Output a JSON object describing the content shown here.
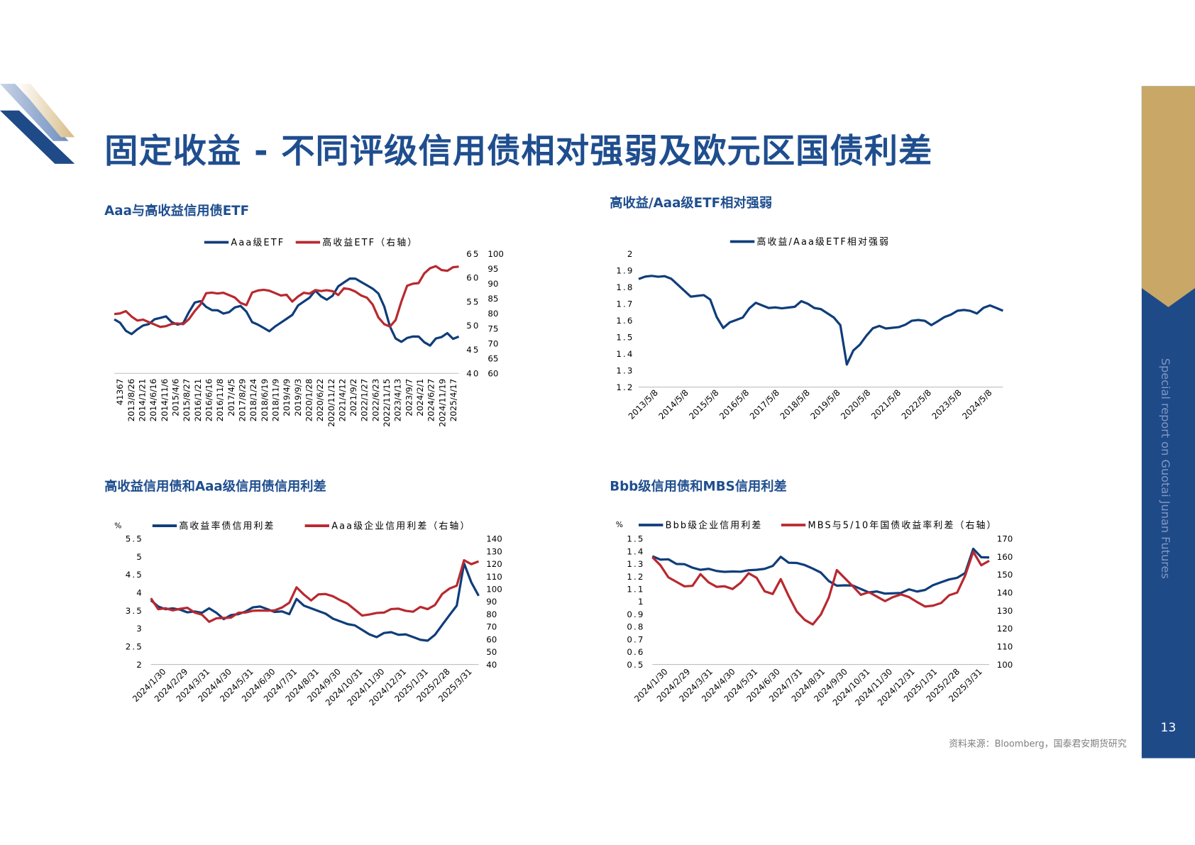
{
  "page": {
    "title": "固定收益 - 不同评级信用债相对强弱及欧元区国债利差",
    "side_text": "Special report on Guotai Junan Futures",
    "page_number": "13",
    "source": "资料来源：Bloomberg，国泰君安期货研究",
    "colors": {
      "navy": "#0f3d7a",
      "red": "#b8292f",
      "title": "#1f4e8f",
      "gold": "#c8a767"
    }
  },
  "chart_data": [
    {
      "id": "c1",
      "type": "line",
      "title": "Aaa与高收益信用债ETF",
      "x_ticks": [
        "41367",
        "2013/8/26",
        "2014/1/21",
        "2014/6/16",
        "2014/11/6",
        "2015/4/6",
        "2015/8/27",
        "2016/1/21",
        "2016/6/16",
        "2016/11/8",
        "2017/4/5",
        "2017/8/29",
        "2018/1/24",
        "2018/6/19",
        "2018/11/9",
        "2019/4/9",
        "2019/9/3",
        "2020/1/28",
        "2020/6/22",
        "2020/11/12",
        "2021/4/12",
        "2021/9/2",
        "2022/1/27",
        "2022/6/23",
        "2022/11/15",
        "2023/4/13",
        "2023/9/7",
        "2024/2/1",
        "2024/6/27",
        "2024/11/19",
        "2025/4/17"
      ],
      "y_left": {
        "ticks": [
          "65",
          "60",
          "55",
          "50",
          "45",
          "40"
        ],
        "range": [
          40,
          65
        ]
      },
      "y_right": {
        "ticks": [
          "100",
          "95",
          "90",
          "85",
          "80",
          "75",
          "70",
          "65",
          "60"
        ],
        "range": [
          60,
          100
        ]
      },
      "series": [
        {
          "name": "Aaa级ETF",
          "color": "#0f3d7a",
          "axis": "left",
          "values": [
            51,
            50.5,
            49,
            48.5,
            49,
            50,
            50.5,
            51,
            51.5,
            52,
            51,
            50,
            50.5,
            53,
            54.5,
            55,
            54,
            53.5,
            53,
            52.5,
            53,
            53.5,
            54,
            53,
            51,
            50,
            49.5,
            49,
            49.5,
            50.5,
            51.5,
            52.5,
            54,
            55,
            56,
            57,
            56,
            55.5,
            56.5,
            58,
            59,
            60,
            59.5,
            59,
            58.5,
            58,
            56.5,
            54,
            50,
            47,
            46.5,
            47.5,
            48,
            47.5,
            46.5,
            46,
            47,
            47.5,
            48.5,
            47.5,
            47.5
          ]
        },
        {
          "name": "高收益ETF（右轴）",
          "color": "#b8292f",
          "axis": "right",
          "values": [
            80,
            80.5,
            80.5,
            79,
            78,
            77.5,
            77,
            76.5,
            76,
            75.5,
            76.5,
            77,
            76,
            78,
            81,
            83.5,
            86.5,
            87,
            87,
            86.5,
            86,
            85.5,
            84,
            82.5,
            87,
            88,
            87.5,
            87.5,
            87,
            86.5,
            86,
            84,
            86,
            86.5,
            86.5,
            88,
            88,
            87.5,
            87.5,
            86.5,
            88,
            88,
            87.5,
            86.5,
            85,
            83,
            79,
            76,
            75.5,
            78,
            84.5,
            89,
            90,
            90.5,
            93,
            95,
            96,
            95,
            94,
            95.5,
            96
          ]
        }
      ]
    },
    {
      "id": "c2",
      "type": "line",
      "title": "高收益/Aaa级ETF相对强弱",
      "x_ticks": [
        "2013/5/8",
        "2014/5/8",
        "2015/5/8",
        "2016/5/8",
        "2017/5/8",
        "2018/5/8",
        "2019/5/8",
        "2020/5/8",
        "2021/5/8",
        "2022/5/8",
        "2023/5/8",
        "2024/5/8"
      ],
      "y_left": {
        "ticks": [
          "2",
          "1.9",
          "1.8",
          "1.7",
          "1.6",
          "1.5",
          "1.4",
          "1.3",
          "1.2"
        ],
        "range": [
          1.2,
          2.0
        ]
      },
      "series": [
        {
          "name": "高收益/Aaa级ETF相对强弱",
          "color": "#0f3d7a",
          "axis": "left",
          "values": [
            1.84,
            1.86,
            1.87,
            1.87,
            1.86,
            1.85,
            1.82,
            1.77,
            1.74,
            1.75,
            1.76,
            1.72,
            1.62,
            1.56,
            1.58,
            1.6,
            1.62,
            1.68,
            1.7,
            1.69,
            1.68,
            1.67,
            1.67,
            1.68,
            1.69,
            1.71,
            1.7,
            1.68,
            1.66,
            1.64,
            1.62,
            1.58,
            1.33,
            1.42,
            1.46,
            1.5,
            1.55,
            1.57,
            1.56,
            1.55,
            1.56,
            1.58,
            1.59,
            1.6,
            1.6,
            1.58,
            1.59,
            1.62,
            1.64,
            1.65,
            1.66,
            1.66,
            1.65,
            1.67,
            1.69,
            1.68,
            1.65
          ]
        }
      ]
    },
    {
      "id": "c3",
      "type": "line",
      "title": "高收益信用债和Aaa级信用债信用利差",
      "unit_label": "%",
      "x_ticks": [
        "2024/1/30",
        "2024/2/29",
        "2024/3/31",
        "2024/4/30",
        "2024/5/31",
        "2024/6/30",
        "2024/7/31",
        "2024/8/31",
        "2024/9/30",
        "2024/10/31",
        "2024/11/30",
        "2024/12/31",
        "2025/1/31",
        "2025/2/28",
        "2025/3/31"
      ],
      "y_left": {
        "ticks": [
          "5.5",
          "5",
          "4.5",
          "4",
          "3.5",
          "3",
          "2.5",
          "2"
        ],
        "range": [
          2,
          5.5
        ]
      },
      "y_right": {
        "ticks": [
          "140",
          "130",
          "120",
          "110",
          "100",
          "90",
          "80",
          "70",
          "60",
          "50",
          "40"
        ],
        "range": [
          40,
          140
        ]
      },
      "series": [
        {
          "name": "高收益率债信用利差",
          "color": "#0f3d7a",
          "axis": "left",
          "values": [
            3.75,
            3.6,
            3.55,
            3.6,
            3.5,
            3.45,
            3.5,
            3.4,
            3.55,
            3.45,
            3.3,
            3.35,
            3.4,
            3.5,
            3.55,
            3.6,
            3.55,
            3.5,
            3.45,
            3.4,
            3.85,
            3.6,
            3.55,
            3.5,
            3.45,
            3.25,
            3.2,
            3.15,
            3.05,
            2.95,
            2.85,
            2.8,
            2.85,
            2.9,
            2.85,
            2.8,
            2.75,
            2.7,
            2.7,
            2.8,
            3.1,
            3.4,
            3.6,
            4.8,
            4.3,
            3.95
          ]
        },
        {
          "name": "Aaa级企业信用利差（右轴）",
          "color": "#b8292f",
          "axis": "right",
          "values": [
            93,
            85,
            84,
            83,
            85,
            84,
            81,
            80,
            75,
            76,
            77,
            78,
            80,
            81,
            83,
            84,
            82,
            83,
            86,
            88,
            101,
            96,
            92,
            95,
            96,
            95,
            90,
            88,
            84,
            80,
            79,
            81,
            82,
            83,
            84,
            83,
            83,
            85,
            84,
            88,
            95,
            100,
            103,
            124,
            119,
            122
          ]
        }
      ]
    },
    {
      "id": "c4",
      "type": "line",
      "title": "Bbb级信用债和MBS信用利差",
      "unit_label": "%",
      "x_ticks": [
        "2024/1/30",
        "2024/2/29",
        "2024/3/31",
        "2024/4/30",
        "2024/5/31",
        "2024/6/30",
        "2024/7/31",
        "2024/8/31",
        "2024/9/30",
        "2024/10/31",
        "2024/11/30",
        "2024/12/31",
        "2025/1/31",
        "2025/2/28",
        "2025/3/31"
      ],
      "y_left": {
        "ticks": [
          "1.5",
          "1.4",
          "1.3",
          "1.2",
          "1.1",
          "1",
          "0.9",
          "0.8",
          "0.7",
          "0.6",
          "0.5"
        ],
        "range": [
          0.5,
          1.5
        ]
      },
      "y_right": {
        "ticks": [
          "170",
          "160",
          "150",
          "140",
          "130",
          "120",
          "110",
          "100"
        ],
        "range": [
          100,
          170
        ]
      },
      "series": [
        {
          "name": "Bbb级企业信用利差",
          "color": "#0f3d7a",
          "axis": "left",
          "values": [
            1.35,
            1.33,
            1.34,
            1.31,
            1.29,
            1.27,
            1.26,
            1.25,
            1.24,
            1.24,
            1.25,
            1.23,
            1.25,
            1.26,
            1.25,
            1.28,
            1.36,
            1.32,
            1.3,
            1.29,
            1.27,
            1.22,
            1.16,
            1.13,
            1.14,
            1.12,
            1.1,
            1.08,
            1.07,
            1.06,
            1.07,
            1.08,
            1.09,
            1.08,
            1.1,
            1.12,
            1.15,
            1.18,
            1.2,
            1.22,
            1.42,
            1.36,
            1.34
          ]
        },
        {
          "name": "MBS与5/10年国债收益率利差（右轴）",
          "color": "#b8292f",
          "axis": "right",
          "values": [
            160,
            156,
            148,
            146,
            144,
            143,
            150,
            146,
            144,
            143,
            142,
            146,
            150,
            148,
            141,
            140,
            147,
            138,
            130,
            124,
            122,
            128,
            138,
            152,
            148,
            144,
            138,
            140,
            138,
            136,
            137,
            139,
            138,
            134,
            132,
            133,
            135,
            138,
            140,
            150,
            162,
            155,
            158
          ]
        }
      ]
    }
  ]
}
